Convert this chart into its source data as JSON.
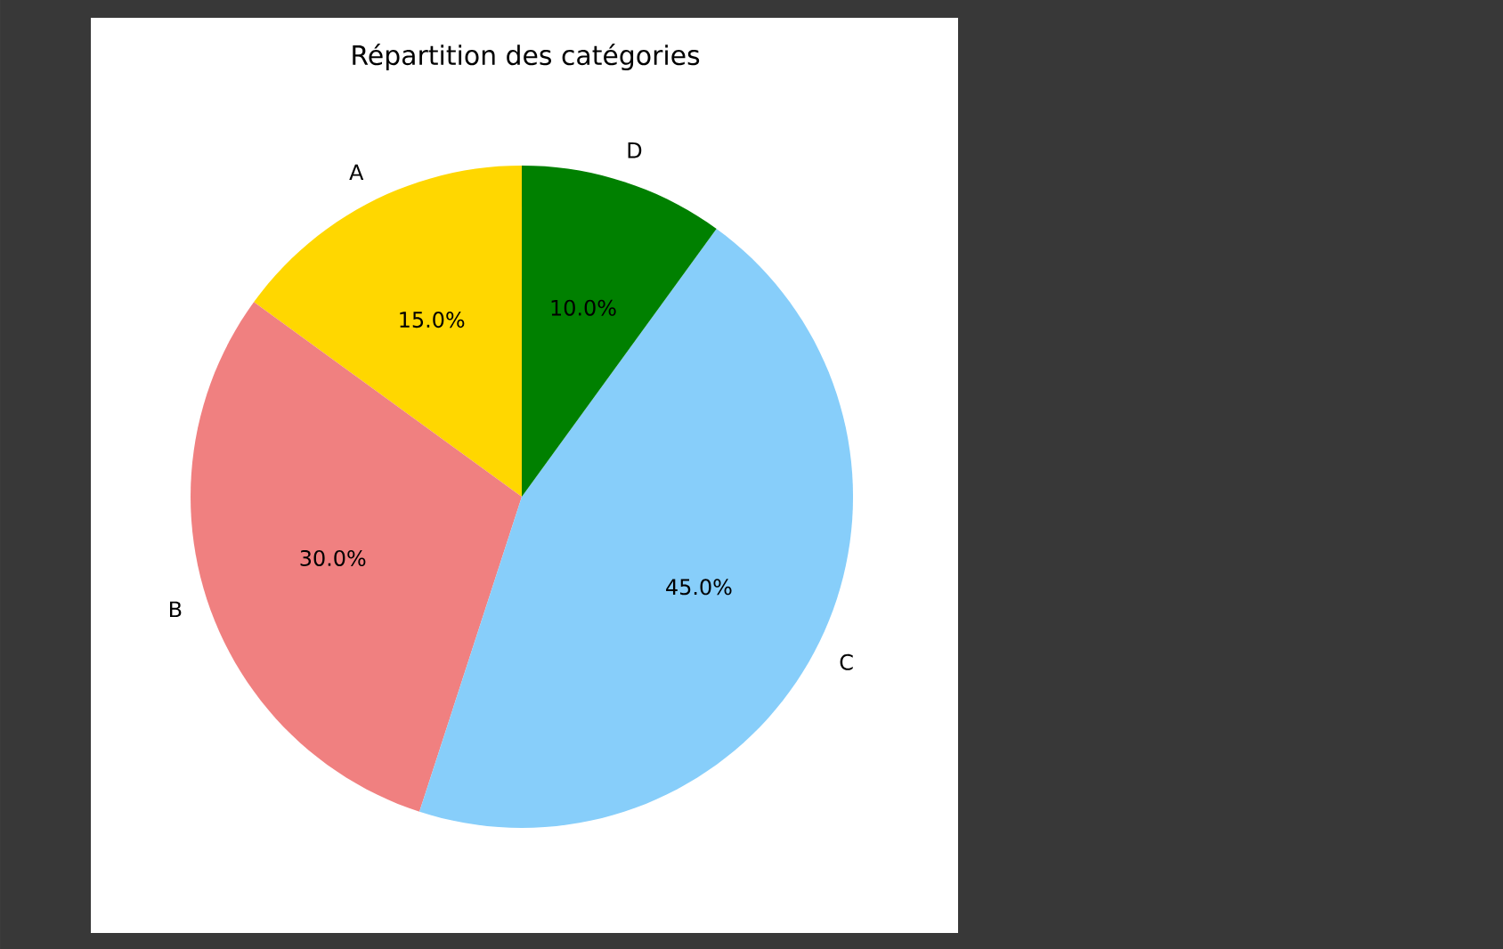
{
  "chart_data": {
    "type": "pie",
    "title": "Répartition des catégories",
    "categories": [
      "A",
      "B",
      "C",
      "D"
    ],
    "values": [
      15,
      30,
      45,
      10
    ],
    "colors": [
      "#ffd700",
      "#f08080",
      "#87cefa",
      "#008000"
    ],
    "value_labels": [
      "15.0%",
      "30.0%",
      "45.0%",
      "10.0%"
    ]
  }
}
